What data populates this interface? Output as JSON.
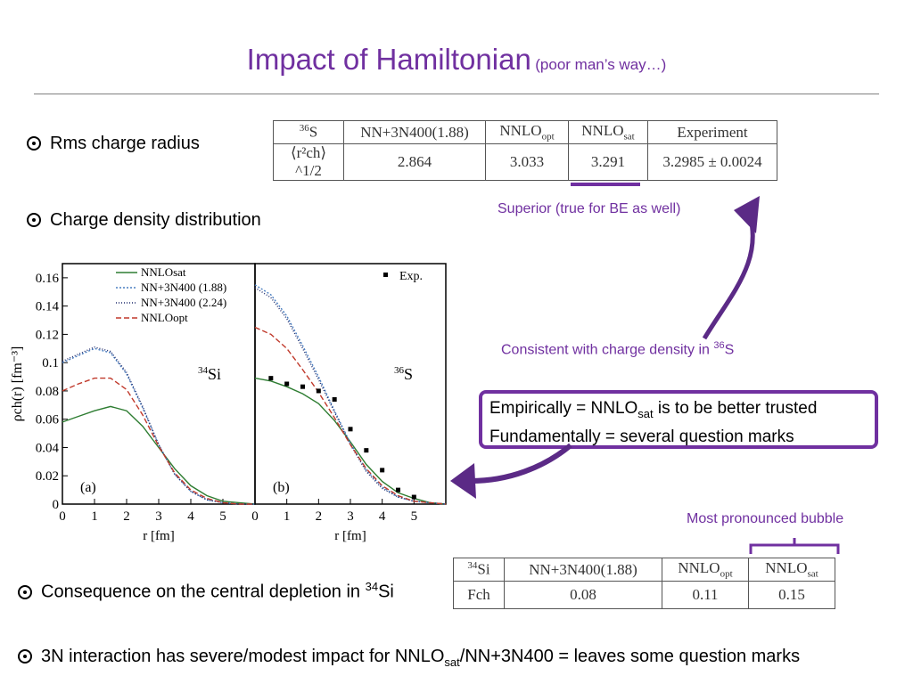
{
  "slide": {
    "title": "Impact of Hamiltonian",
    "subtitle": "(poor man’s way…)",
    "bullet1": "Rms charge radius",
    "bullet2": "Charge density distribution",
    "bullet3_pre": "Consequence on the central depletion in ",
    "bullet3_sup": "34",
    "bullet3_post": "Si",
    "bullet4_pre": "3N interaction has severe/modest impact for NNLO",
    "bullet4_sub": "sat",
    "bullet4_post": "/NN+3N400 = leaves some question marks"
  },
  "annotations": {
    "superior": "Superior (true for BE as well)",
    "consistent_pre": "Consistent with charge density in ",
    "consistent_sup": "36",
    "consistent_post": "S",
    "empirically_pre": "Empirically = NNLO",
    "empirically_sub": "sat",
    "empirically_post": " is to be better trusted",
    "fundamentally": "Fundamentally = several question marks",
    "bubble": "Most pronounced bubble",
    "accent_color": "#7030a0"
  },
  "radius_table": {
    "nucleus_sup": "36",
    "nucleus": "S",
    "headers": [
      "NN+3N400(1.88)",
      "NNLO",
      "NNLO",
      "Experiment"
    ],
    "header_subs": [
      "",
      "opt",
      "sat",
      ""
    ],
    "row_label": "⟨r²ch⟩^1/2",
    "values": [
      "2.864",
      "3.033",
      "3.291",
      "3.2985 ± 0.0024"
    ]
  },
  "bubble_table": {
    "nucleus_sup": "34",
    "nucleus": "Si",
    "headers": [
      "NN+3N400(1.88)",
      "NNLO",
      "NNLO"
    ],
    "header_subs": [
      "",
      "opt",
      "sat"
    ],
    "row_label": "Fch",
    "values": [
      "0.08",
      "0.11",
      "0.15"
    ]
  },
  "chart_data": {
    "type": "line",
    "ylabel": "ρch(r) [fm⁻³]",
    "ylim": [
      0,
      0.17
    ],
    "yticks": [
      "0",
      "0.02",
      "0.04",
      "0.06",
      "0.08",
      "0.1",
      "0.12",
      "0.14",
      "0.16"
    ],
    "legend": [
      "NNLOsat",
      "NN+3N400 (1.88)",
      "NN+3N400 (2.24)",
      "NNLOopt"
    ],
    "legend_exp": "Exp.",
    "panels": [
      {
        "label": "(a)",
        "nucleus_sup": "34",
        "nucleus": "Si",
        "xlabel": "r [fm]",
        "xlim": [
          0,
          6
        ],
        "xticks": [
          "0",
          "1",
          "2",
          "3",
          "4",
          "5"
        ],
        "x": [
          0,
          0.5,
          1,
          1.5,
          2,
          2.5,
          3,
          3.5,
          4,
          4.5,
          5,
          5.5,
          6
        ],
        "series": [
          {
            "name": "NNLOsat",
            "color": "#2e7d32",
            "dash": "",
            "values": [
              0.058,
              0.062,
              0.066,
              0.069,
              0.066,
              0.055,
              0.04,
              0.025,
              0.013,
              0.006,
              0.002,
              0.001,
              0.0
            ]
          },
          {
            "name": "NN+3N400 (1.88)",
            "color": "#4a7fc1",
            "dash": "2,2",
            "values": [
              0.1,
              0.105,
              0.11,
              0.107,
              0.092,
              0.068,
              0.042,
              0.021,
              0.009,
              0.003,
              0.001,
              0.0,
              0.0
            ]
          },
          {
            "name": "NN+3N400 (2.24)",
            "color": "#1f2a6b",
            "dash": "1,2",
            "values": [
              0.101,
              0.106,
              0.111,
              0.108,
              0.093,
              0.069,
              0.042,
              0.021,
              0.009,
              0.003,
              0.001,
              0.0,
              0.0
            ]
          },
          {
            "name": "NNLOopt",
            "color": "#c0392b",
            "dash": "6,3",
            "values": [
              0.08,
              0.085,
              0.089,
              0.089,
              0.081,
              0.063,
              0.041,
              0.022,
              0.01,
              0.004,
              0.001,
              0.0,
              0.0
            ]
          }
        ]
      },
      {
        "label": "(b)",
        "nucleus_sup": "36",
        "nucleus": "S",
        "xlabel": "r [fm]",
        "xlim": [
          0,
          6
        ],
        "xticks": [
          "0",
          "1",
          "2",
          "3",
          "4",
          "5"
        ],
        "x": [
          0,
          0.5,
          1,
          1.5,
          2,
          2.5,
          3,
          3.5,
          4,
          4.5,
          5,
          5.5,
          6
        ],
        "series": [
          {
            "name": "NNLOsat",
            "color": "#2e7d32",
            "dash": "",
            "values": [
              0.089,
              0.087,
              0.083,
              0.078,
              0.071,
              0.059,
              0.044,
              0.028,
              0.016,
              0.008,
              0.004,
              0.001,
              0.0
            ]
          },
          {
            "name": "NN+3N400 (1.88)",
            "color": "#4a7fc1",
            "dash": "2,2",
            "values": [
              0.155,
              0.148,
              0.133,
              0.112,
              0.09,
              0.066,
              0.043,
              0.024,
              0.012,
              0.005,
              0.002,
              0.001,
              0.0
            ]
          },
          {
            "name": "NN+3N400 (2.24)",
            "color": "#1f2a6b",
            "dash": "1,2",
            "values": [
              0.153,
              0.146,
              0.131,
              0.11,
              0.088,
              0.065,
              0.042,
              0.023,
              0.011,
              0.005,
              0.002,
              0.001,
              0.0
            ]
          },
          {
            "name": "NNLOopt",
            "color": "#c0392b",
            "dash": "6,3",
            "values": [
              0.125,
              0.12,
              0.11,
              0.095,
              0.079,
              0.061,
              0.042,
              0.025,
              0.013,
              0.006,
              0.002,
              0.001,
              0.0
            ]
          }
        ],
        "exp_x": [
          0.5,
          1,
          1.5,
          2,
          2.5,
          3,
          3.5,
          4,
          4.5,
          5
        ],
        "exp_y": [
          0.089,
          0.085,
          0.083,
          0.08,
          0.074,
          0.053,
          0.038,
          0.024,
          0.01,
          0.005
        ]
      }
    ]
  }
}
